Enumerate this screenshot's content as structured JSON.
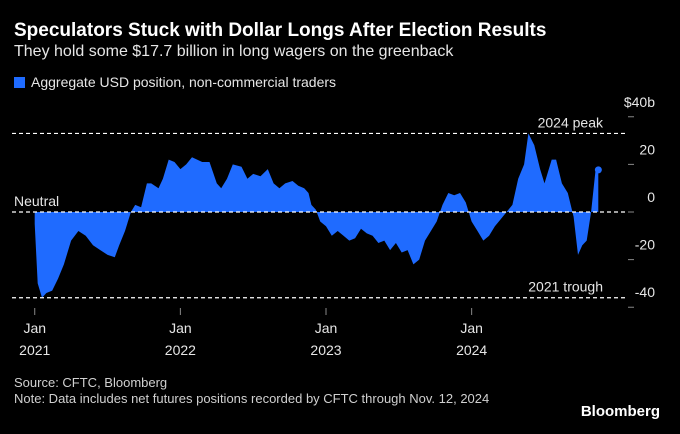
{
  "chart_data": {
    "type": "area",
    "title": "Speculators Stuck with Dollar Longs After Election Results",
    "subtitle": "They hold some $17.7 billion in long wagers on the greenback",
    "series": [
      {
        "name": "Aggregate USD position, non-commercial traders",
        "color": "#1f6bff",
        "x": [
          2021.0,
          2021.02,
          2021.05,
          2021.08,
          2021.12,
          2021.16,
          2021.2,
          2021.25,
          2021.3,
          2021.35,
          2021.4,
          2021.45,
          2021.5,
          2021.55,
          2021.58,
          2021.62,
          2021.66,
          2021.69,
          2021.73,
          2021.77,
          2021.8,
          2021.85,
          2021.88,
          2021.92,
          2021.96,
          2022.0,
          2022.04,
          2022.08,
          2022.15,
          2022.2,
          2022.25,
          2022.28,
          2022.32,
          2022.36,
          2022.42,
          2022.46,
          2022.5,
          2022.55,
          2022.6,
          2022.64,
          2022.68,
          2022.72,
          2022.77,
          2022.81,
          2022.85,
          2022.88,
          2022.9,
          2022.93,
          2022.96,
          2023.0,
          2023.04,
          2023.08,
          2023.12,
          2023.16,
          2023.2,
          2023.24,
          2023.28,
          2023.32,
          2023.36,
          2023.4,
          2023.44,
          2023.48,
          2023.52,
          2023.56,
          2023.6,
          2023.64,
          2023.68,
          2023.72,
          2023.76,
          2023.8,
          2023.84,
          2023.88,
          2023.92,
          2023.96,
          2024.0,
          2024.04,
          2024.08,
          2024.12,
          2024.16,
          2024.2,
          2024.24,
          2024.28,
          2024.32,
          2024.36,
          2024.39,
          2024.43,
          2024.47,
          2024.5,
          2024.55,
          2024.58,
          2024.62,
          2024.66,
          2024.7,
          2024.73,
          2024.76,
          2024.79,
          2024.82,
          2024.85,
          2024.87
        ],
        "values": [
          -5,
          -30,
          -36,
          -34,
          -33,
          -28,
          -22,
          -12,
          -8,
          -10,
          -14,
          -16,
          -18,
          -19,
          -14,
          -8,
          0,
          3,
          2,
          12,
          12,
          10,
          14,
          22,
          21,
          18,
          20,
          23,
          21,
          21,
          12,
          10,
          14,
          20,
          19,
          14,
          16,
          15,
          18,
          12,
          10,
          12,
          13,
          11,
          10,
          8,
          3,
          1,
          -4,
          -6,
          -10,
          -8,
          -10,
          -12,
          -11,
          -7,
          -9,
          -10,
          -13,
          -12,
          -16,
          -13,
          -17,
          -16,
          -22,
          -20,
          -12,
          -8,
          -4,
          3,
          8,
          7,
          8,
          4,
          -4,
          -8,
          -12,
          -10,
          -6,
          -3,
          0,
          3,
          14,
          20,
          33,
          28,
          18,
          12,
          22,
          22,
          12,
          8,
          -2,
          -18,
          -14,
          -12,
          0,
          17,
          17.7
        ]
      }
    ],
    "xlim": [
      2020.94,
      2024.95
    ],
    "xticks": [
      {
        "value": 2021,
        "label": "Jan 2021"
      },
      {
        "value": 2022,
        "label": "Jan 2022"
      },
      {
        "value": 2023,
        "label": "Jan 2023"
      },
      {
        "value": 2024,
        "label": "Jan 2024"
      }
    ],
    "ylim": [
      -42,
      42
    ],
    "yticks": [
      {
        "value": 40,
        "label": "$40b"
      },
      20,
      0,
      -20,
      -40
    ],
    "annotations": [
      {
        "text": "2024 peak",
        "value": 33
      },
      {
        "text": "Neutral",
        "value": 0
      },
      {
        "text": "2021 trough",
        "value": -36
      }
    ],
    "source": "Source: CFTC, Bloomberg",
    "note": "Note: Data includes net futures positions recorded by CFTC through Nov. 12, 2024",
    "brand": "Bloomberg"
  }
}
